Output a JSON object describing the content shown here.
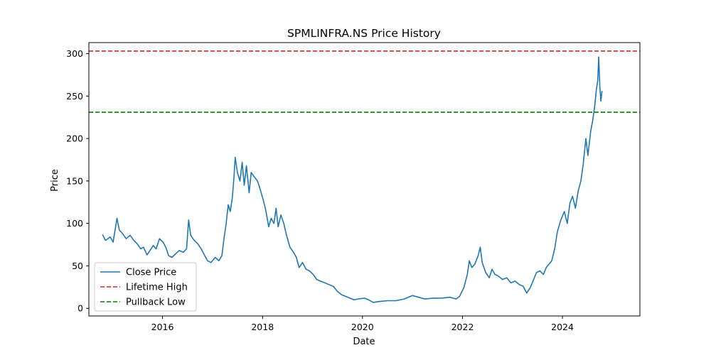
{
  "chart_data": {
    "type": "line",
    "title": "SPMLINFRA.NS Price History",
    "xlabel": "Date",
    "ylabel": "Price",
    "x_ticks": [
      "2016",
      "2018",
      "2020",
      "2022",
      "2024"
    ],
    "y_ticks": [
      0,
      50,
      100,
      150,
      200,
      250,
      300
    ],
    "xlim": [
      "2014-07-12",
      "2025-07-20"
    ],
    "ylim": [
      -9,
      313
    ],
    "grid": false,
    "legend_position": "lower-left",
    "series": [
      {
        "name": "Close Price",
        "color": "#1f77b4",
        "style": "solid",
        "points": [
          [
            "2014-10-20",
            87
          ],
          [
            "2014-11-10",
            80
          ],
          [
            "2014-12-15",
            84
          ],
          [
            "2015-01-05",
            78
          ],
          [
            "2015-02-02",
            106
          ],
          [
            "2015-02-20",
            92
          ],
          [
            "2015-03-15",
            88
          ],
          [
            "2015-04-10",
            82
          ],
          [
            "2015-05-10",
            86
          ],
          [
            "2015-06-05",
            80
          ],
          [
            "2015-07-01",
            76
          ],
          [
            "2015-07-25",
            70
          ],
          [
            "2015-08-15",
            72
          ],
          [
            "2015-09-10",
            63
          ],
          [
            "2015-10-01",
            68
          ],
          [
            "2015-10-25",
            74
          ],
          [
            "2015-11-15",
            70
          ],
          [
            "2015-12-10",
            82
          ],
          [
            "2016-01-05",
            78
          ],
          [
            "2016-01-25",
            72
          ],
          [
            "2016-02-15",
            62
          ],
          [
            "2016-03-10",
            60
          ],
          [
            "2016-04-05",
            64
          ],
          [
            "2016-05-01",
            68
          ],
          [
            "2016-06-01",
            66
          ],
          [
            "2016-06-25",
            70
          ],
          [
            "2016-07-10",
            104
          ],
          [
            "2016-07-25",
            86
          ],
          [
            "2016-08-20",
            80
          ],
          [
            "2016-09-15",
            76
          ],
          [
            "2016-10-10",
            70
          ],
          [
            "2016-11-05",
            62
          ],
          [
            "2016-11-25",
            56
          ],
          [
            "2016-12-20",
            54
          ],
          [
            "2017-01-20",
            60
          ],
          [
            "2017-02-15",
            56
          ],
          [
            "2017-03-10",
            62
          ],
          [
            "2017-03-25",
            82
          ],
          [
            "2017-04-10",
            100
          ],
          [
            "2017-04-25",
            122
          ],
          [
            "2017-05-10",
            114
          ],
          [
            "2017-05-25",
            130
          ],
          [
            "2017-06-05",
            152
          ],
          [
            "2017-06-15",
            178
          ],
          [
            "2017-07-01",
            160
          ],
          [
            "2017-07-20",
            150
          ],
          [
            "2017-08-05",
            172
          ],
          [
            "2017-08-20",
            145
          ],
          [
            "2017-09-05",
            168
          ],
          [
            "2017-09-25",
            136
          ],
          [
            "2017-10-10",
            160
          ],
          [
            "2017-11-01",
            155
          ],
          [
            "2017-11-25",
            150
          ],
          [
            "2017-12-15",
            140
          ],
          [
            "2018-01-05",
            128
          ],
          [
            "2018-01-25",
            115
          ],
          [
            "2018-02-15",
            96
          ],
          [
            "2018-03-05",
            106
          ],
          [
            "2018-03-25",
            100
          ],
          [
            "2018-04-10",
            118
          ],
          [
            "2018-04-25",
            96
          ],
          [
            "2018-05-15",
            110
          ],
          [
            "2018-06-05",
            100
          ],
          [
            "2018-06-25",
            86
          ],
          [
            "2018-07-20",
            72
          ],
          [
            "2018-08-15",
            66
          ],
          [
            "2018-09-05",
            60
          ],
          [
            "2018-09-25",
            48
          ],
          [
            "2018-10-20",
            54
          ],
          [
            "2018-11-15",
            46
          ],
          [
            "2018-12-10",
            44
          ],
          [
            "2019-01-05",
            40
          ],
          [
            "2019-02-01",
            34
          ],
          [
            "2019-03-01",
            32
          ],
          [
            "2019-04-01",
            30
          ],
          [
            "2019-05-01",
            28
          ],
          [
            "2019-06-01",
            26
          ],
          [
            "2019-07-01",
            20
          ],
          [
            "2019-08-01",
            16
          ],
          [
            "2019-09-01",
            14
          ],
          [
            "2019-10-01",
            12
          ],
          [
            "2019-11-01",
            10
          ],
          [
            "2019-12-01",
            11
          ],
          [
            "2020-01-15",
            12
          ],
          [
            "2020-02-15",
            10
          ],
          [
            "2020-03-20",
            7
          ],
          [
            "2020-05-01",
            8
          ],
          [
            "2020-07-01",
            9
          ],
          [
            "2020-09-01",
            9
          ],
          [
            "2020-11-01",
            11
          ],
          [
            "2021-01-01",
            15
          ],
          [
            "2021-02-15",
            13
          ],
          [
            "2021-04-01",
            11
          ],
          [
            "2021-06-01",
            12
          ],
          [
            "2021-08-01",
            12
          ],
          [
            "2021-10-01",
            13
          ],
          [
            "2021-11-15",
            11
          ],
          [
            "2021-12-10",
            14
          ],
          [
            "2022-01-10",
            24
          ],
          [
            "2022-02-05",
            40
          ],
          [
            "2022-02-20",
            56
          ],
          [
            "2022-03-10",
            48
          ],
          [
            "2022-04-01",
            52
          ],
          [
            "2022-04-25",
            62
          ],
          [
            "2022-05-10",
            72
          ],
          [
            "2022-05-25",
            54
          ],
          [
            "2022-06-20",
            42
          ],
          [
            "2022-07-15",
            36
          ],
          [
            "2022-08-05",
            46
          ],
          [
            "2022-08-25",
            40
          ],
          [
            "2022-09-20",
            38
          ],
          [
            "2022-10-20",
            34
          ],
          [
            "2022-11-20",
            36
          ],
          [
            "2022-12-20",
            30
          ],
          [
            "2023-01-20",
            32
          ],
          [
            "2023-02-20",
            28
          ],
          [
            "2023-03-20",
            26
          ],
          [
            "2023-04-15",
            18
          ],
          [
            "2023-05-10",
            24
          ],
          [
            "2023-06-05",
            34
          ],
          [
            "2023-06-25",
            42
          ],
          [
            "2023-07-20",
            44
          ],
          [
            "2023-08-15",
            40
          ],
          [
            "2023-09-05",
            48
          ],
          [
            "2023-09-25",
            52
          ],
          [
            "2023-10-15",
            56
          ],
          [
            "2023-11-05",
            70
          ],
          [
            "2023-11-25",
            90
          ],
          [
            "2023-12-20",
            104
          ],
          [
            "2024-01-15",
            114
          ],
          [
            "2024-02-05",
            100
          ],
          [
            "2024-02-25",
            124
          ],
          [
            "2024-03-15",
            132
          ],
          [
            "2024-04-05",
            118
          ],
          [
            "2024-04-25",
            138
          ],
          [
            "2024-05-15",
            150
          ],
          [
            "2024-06-01",
            170
          ],
          [
            "2024-06-20",
            200
          ],
          [
            "2024-07-05",
            180
          ],
          [
            "2024-07-25",
            208
          ],
          [
            "2024-08-10",
            222
          ],
          [
            "2024-08-25",
            240
          ],
          [
            "2024-09-05",
            258
          ],
          [
            "2024-09-15",
            268
          ],
          [
            "2024-09-22",
            296
          ],
          [
            "2024-09-30",
            262
          ],
          [
            "2024-10-08",
            244
          ],
          [
            "2024-10-16",
            256
          ]
        ]
      },
      {
        "name": "Lifetime High",
        "color": "#d62728",
        "style": "dashed",
        "hline": 303
      },
      {
        "name": "Pullback Low",
        "color": "#008000",
        "style": "dashed",
        "hline": 231
      }
    ]
  }
}
